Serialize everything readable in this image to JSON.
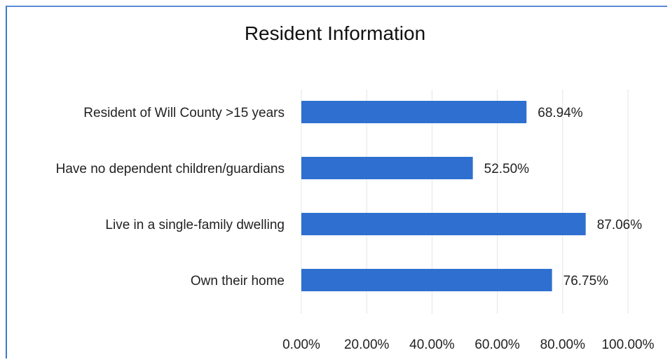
{
  "chart_data": {
    "type": "bar",
    "orientation": "horizontal",
    "title": "Resident Information",
    "xlabel": "",
    "ylabel": "",
    "categories": [
      "Resident of Will County >15 years",
      "Have no dependent children/guardians",
      "Live in a single-family dwelling",
      "Own their home"
    ],
    "values": [
      68.94,
      52.5,
      87.06,
      76.75
    ],
    "data_labels": [
      "68.94%",
      "52.50%",
      "87.06%",
      "76.75%"
    ],
    "xlim": [
      0,
      100
    ],
    "ticks": [
      "0.00%",
      "20.00%",
      "40.00%",
      "60.00%",
      "80.00%",
      "100.00%"
    ],
    "grid": true,
    "bar_color": "#2e6fd0"
  }
}
